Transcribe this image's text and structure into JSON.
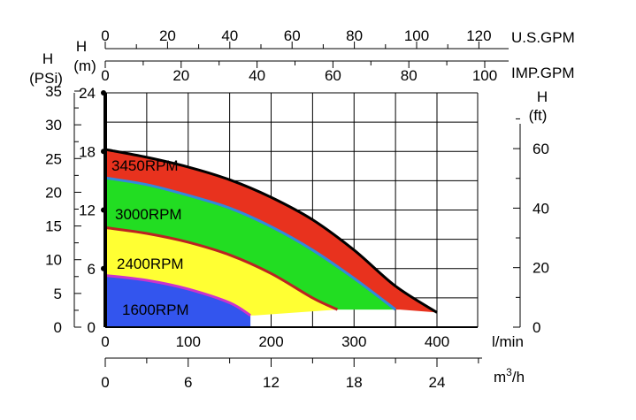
{
  "chart_data": {
    "type": "area",
    "title": "",
    "axes": {
      "x_lmin": {
        "label": "l/min",
        "range": [
          0,
          400
        ],
        "ticks": [
          0,
          100,
          200,
          300,
          400
        ]
      },
      "x_m3h": {
        "label": "m",
        "superscript": "3",
        "suffix": "/h",
        "range": [
          0,
          24
        ],
        "ticks": [
          0,
          6,
          12,
          18,
          24
        ]
      },
      "x_usgpm": {
        "label": "U.S.GPM",
        "range": [
          0,
          105.7
        ],
        "ticks": [
          0,
          20,
          40,
          60,
          80,
          100,
          120
        ]
      },
      "x_impgpm": {
        "label": "IMP.GPM",
        "range": [
          0,
          88
        ],
        "ticks": [
          0,
          20,
          40,
          60,
          80,
          100
        ]
      },
      "y_m": {
        "label_line1": "H",
        "label_line2": "(m)",
        "range": [
          0,
          24
        ],
        "ticks": [
          0,
          6,
          12,
          18,
          24
        ]
      },
      "y_psi": {
        "label_line1": "H",
        "label_line2": "(PSi)",
        "range": [
          0,
          35
        ],
        "ticks": [
          0,
          5,
          10,
          15,
          20,
          25,
          30,
          35
        ]
      },
      "y_ft": {
        "label_line1": "H",
        "label_line2": "(ft)",
        "range": [
          0,
          78.74
        ],
        "ticks": [
          0,
          20,
          40,
          60
        ]
      }
    },
    "grid": true,
    "series": [
      {
        "name": "3450RPM",
        "color": "#e8321e",
        "x": [
          0,
          50,
          100,
          150,
          200,
          250,
          300,
          350,
          400
        ],
        "y": [
          18.2,
          17.4,
          16.4,
          15.1,
          13.3,
          11.0,
          7.9,
          4.2,
          1.5
        ]
      },
      {
        "name": "3000RPM",
        "color": "#22dd22",
        "x": [
          0,
          50,
          100,
          150,
          200,
          250,
          300,
          350
        ],
        "y": [
          15.3,
          14.6,
          13.5,
          12.2,
          10.3,
          7.9,
          5.0,
          1.8
        ]
      },
      {
        "name": "2400RPM",
        "color": "#ffff33",
        "x": [
          0,
          50,
          100,
          150,
          200,
          250,
          280
        ],
        "y": [
          10.2,
          9.6,
          8.7,
          7.4,
          5.5,
          3.0,
          1.8
        ]
      },
      {
        "name": "1600RPM",
        "color": "#3355ee",
        "x": [
          0,
          50,
          100,
          150,
          175
        ],
        "y": [
          5.3,
          4.8,
          3.9,
          2.5,
          1.2
        ]
      }
    ]
  }
}
